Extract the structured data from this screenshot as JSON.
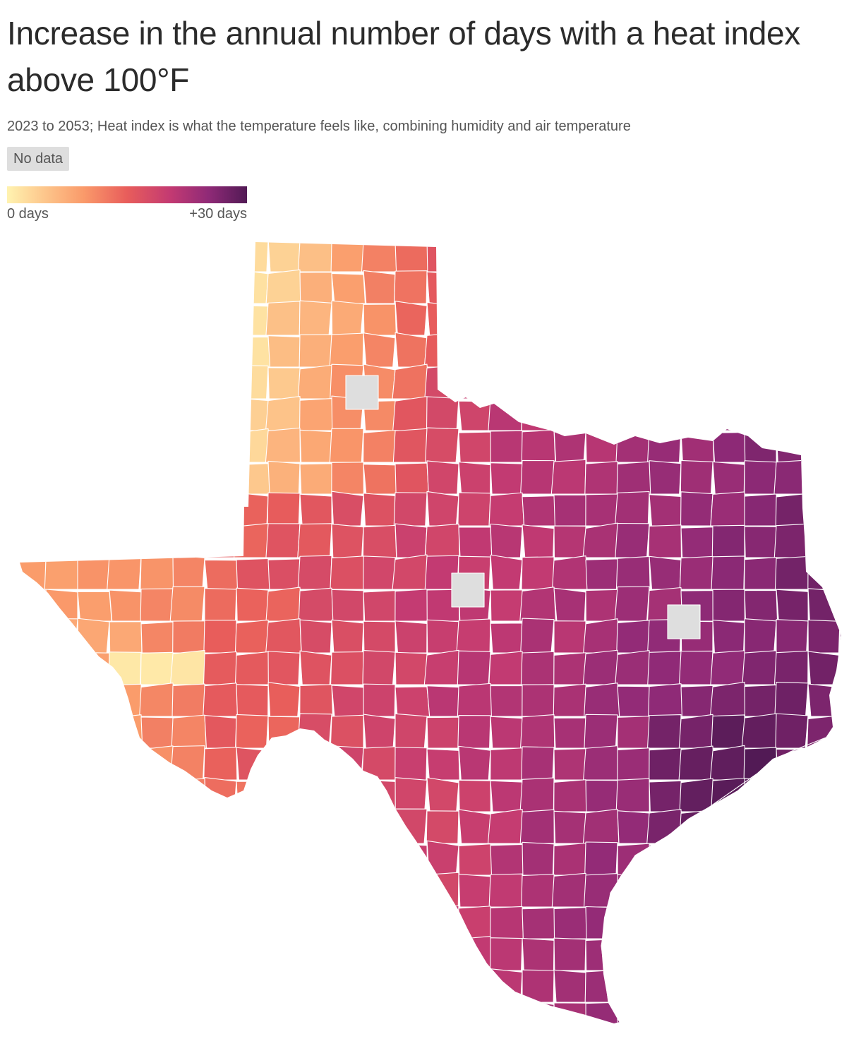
{
  "title": "Increase in the annual number of days with a heat index above 100°F",
  "subtitle": "2023 to 2053; Heat index is what the temperature feels like, combining humidity and air temperature",
  "no_data_label": "No data",
  "legend": {
    "min_label": "0 days",
    "max_label": "+30 days",
    "min_value": 0,
    "max_value": 30,
    "colors": [
      "#fff3b0",
      "#fdc88d",
      "#fa9a6a",
      "#e85d5b",
      "#c33a72",
      "#8f2a77",
      "#521a55"
    ],
    "no_data_color": "#dedede"
  },
  "map": {
    "region": "Texas",
    "unit": "counties",
    "metric": "increase in days per year with heat index above 100°F",
    "scale_range": [
      0,
      30
    ]
  }
}
